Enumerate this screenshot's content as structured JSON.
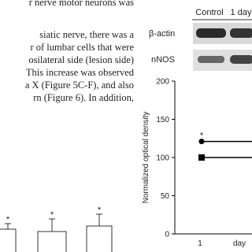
{
  "text_lines": [
    "r nerve motor neurons was",
    "siatic nerve, there was a",
    "r of lumbar cells that were",
    "osilateral side (lesion side)",
    "This increase was observed",
    "a X (Figure 5C-F), and also",
    "rn (Figure 6). In addition,"
  ],
  "left_figure": {
    "markers": [
      "*",
      "*",
      "*"
    ]
  },
  "right_figure": {
    "blot": {
      "columns": [
        "Control",
        "1 day"
      ],
      "rows": [
        "β-actin",
        "nNOS"
      ]
    },
    "chart": {
      "type": "line",
      "y_label": "Normalized optical density",
      "x_labels": [
        "1",
        "day"
      ],
      "ylim": [
        0,
        200
      ],
      "yticks": [
        0,
        50,
        100,
        150,
        200
      ],
      "series": [
        {
          "color": "#000000",
          "marker": "circle",
          "values": [
            121
          ],
          "value_labels": [
            "*"
          ]
        },
        {
          "color": "#000000",
          "marker": "square",
          "values": [
            100
          ]
        }
      ]
    }
  }
}
